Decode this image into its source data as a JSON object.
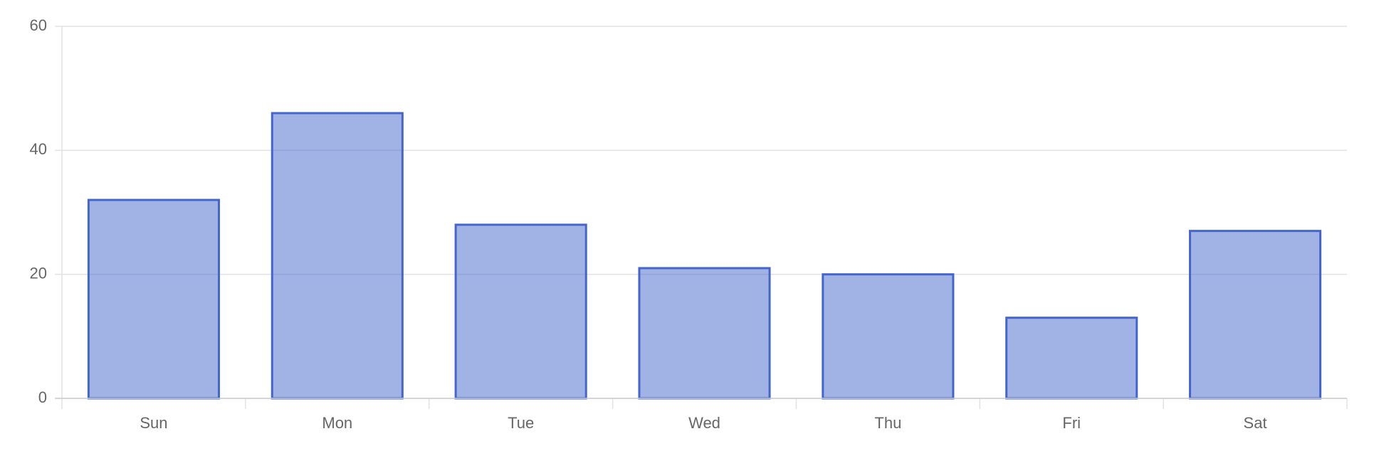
{
  "chart_data": {
    "type": "bar",
    "categories": [
      "Sun",
      "Mon",
      "Tue",
      "Wed",
      "Thu",
      "Fri",
      "Sat"
    ],
    "values": [
      32,
      46,
      28,
      21,
      20,
      13,
      27
    ],
    "color": "#4466cc",
    "ylim": [
      0,
      60
    ],
    "yticks": [
      0,
      20,
      40,
      60
    ],
    "grid": true
  }
}
